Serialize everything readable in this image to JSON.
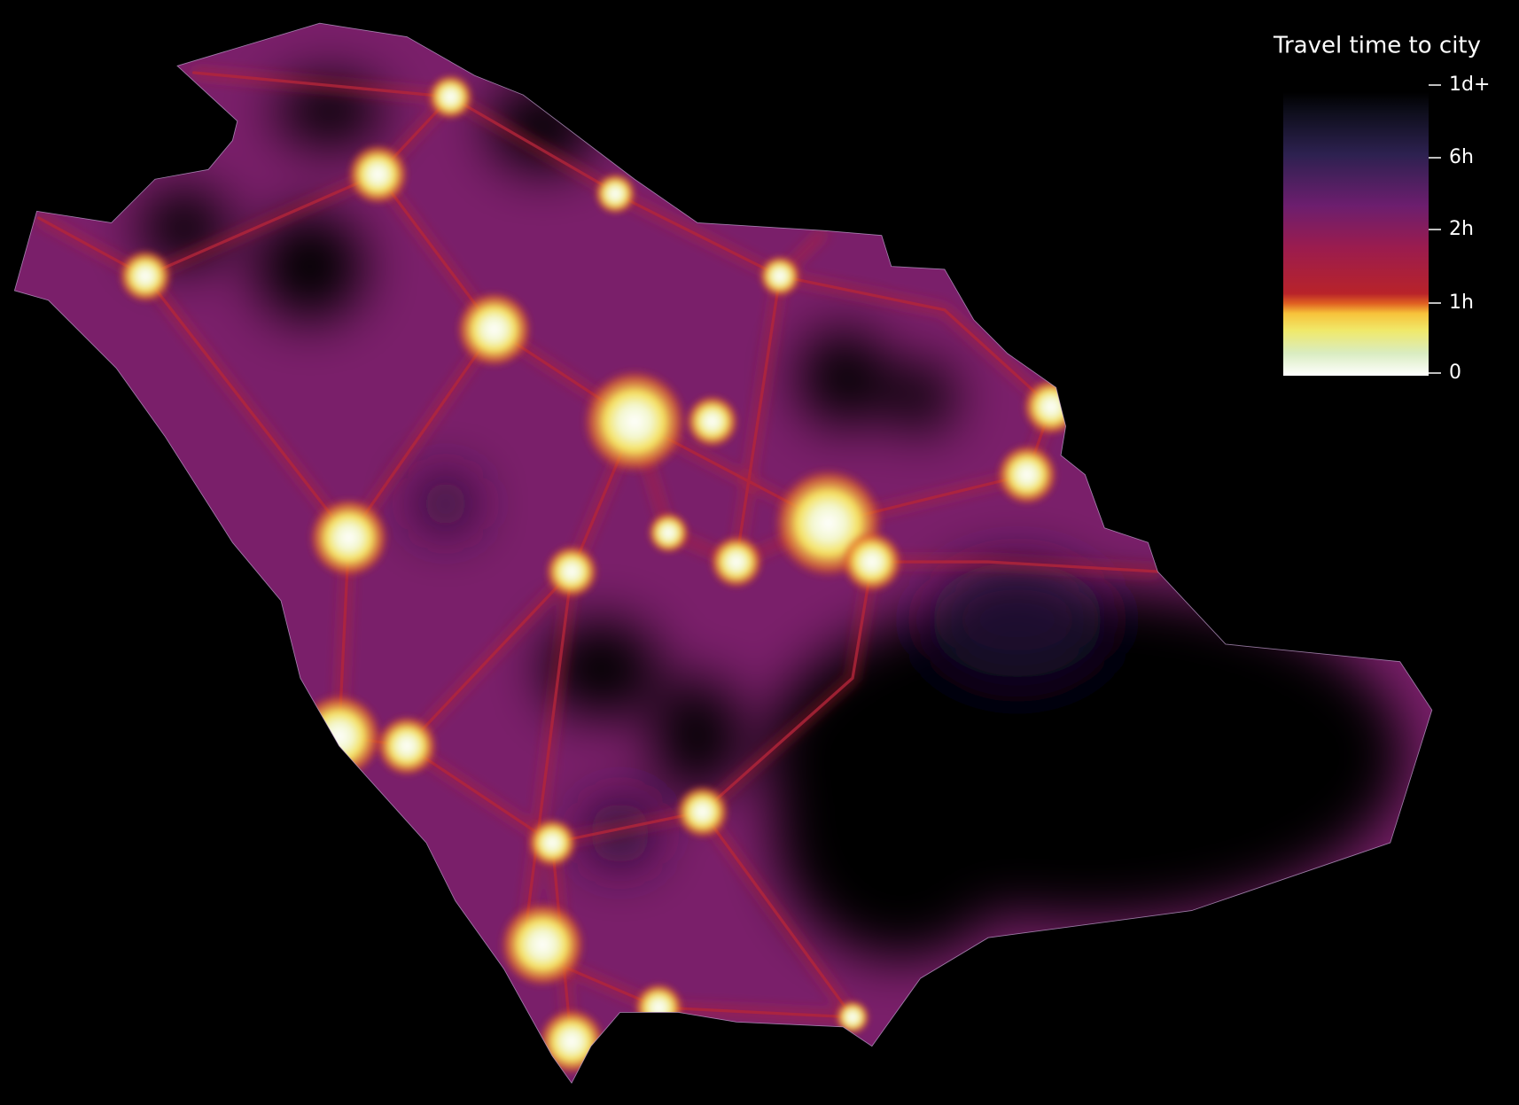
{
  "legend": {
    "title": "Travel time to city",
    "ticks": [
      "1d+",
      "6h",
      "2h",
      "1h",
      "0"
    ]
  }
}
